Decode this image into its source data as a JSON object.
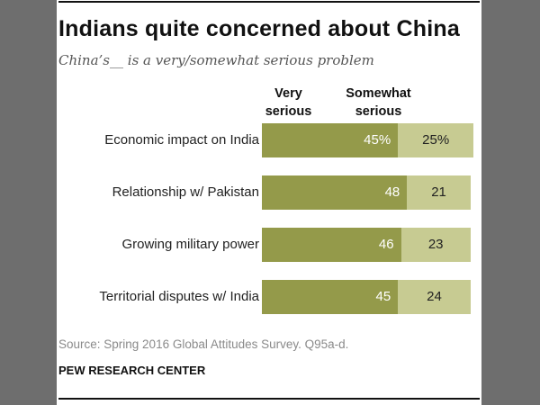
{
  "chart_data": {
    "type": "bar",
    "orientation": "horizontal-stacked",
    "title": "Indians quite concerned about China",
    "subtitle": "China’s__ is a very/somewhat serious problem",
    "categories": [
      "Economic impact on India",
      "Relationship w/ Pakistan",
      "Growing military power",
      "Territorial disputes w/ India"
    ],
    "series": [
      {
        "name": "Very serious",
        "values": [
          45,
          48,
          46,
          45
        ],
        "labels": [
          "45%",
          "48",
          "46",
          "45"
        ],
        "color": "#949a4a",
        "label_color": "#ffffff"
      },
      {
        "name": "Somewhat serious",
        "values": [
          25,
          21,
          23,
          24
        ],
        "labels": [
          "25%",
          "21",
          "23",
          "24"
        ],
        "color": "#c7cb92",
        "label_color": "#222222"
      }
    ],
    "headers": [
      "Very\nserious",
      "Somewhat\nserious"
    ],
    "source": "Source: Spring 2016 Global Attitudes Survey. Q95a-d.",
    "organization": "PEW RESEARCH CENTER"
  },
  "colors": {
    "background": "#6e6e6e",
    "panel": "#ffffff"
  }
}
